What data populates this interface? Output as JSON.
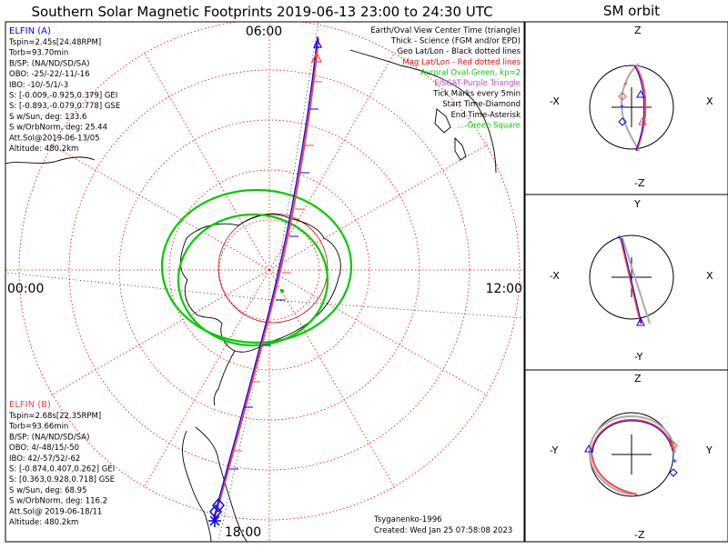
{
  "main": {
    "title": "Southern Solar Magnetic Footprints 2019-06-13 23:00 to 24:30 UTC",
    "labels": {
      "top": "06:00",
      "left": "00:00",
      "right": "12:00",
      "bottom": "18:00"
    }
  },
  "legend": [
    {
      "text": "Earth/Oval View Center Time (triangle)",
      "color": "#000000"
    },
    {
      "text": "Thick - Science (FGM and/or EPD)",
      "color": "#000000"
    },
    {
      "text": "Geo Lat/Lon - Black dotted lines",
      "color": "#000000"
    },
    {
      "text": "Mag Lat/Lon - Red dotted lines",
      "color": "#ff0000"
    },
    {
      "text": "Auroral Oval-Green, kp=2",
      "color": "#00cc00"
    },
    {
      "text": "EISCAT-Purple Triangle",
      "color": "#cc44cc"
    },
    {
      "text": "Tick Marks every 5min",
      "color": "#000000"
    },
    {
      "text": "Start Time-Diamond",
      "color": "#000000"
    },
    {
      "text": "End Time-Asterisk",
      "color": "#000000"
    },
    {
      "text": "...-Green Square",
      "color": "#00cc00"
    }
  ],
  "elfin_a": {
    "name": "ELFIN (A)",
    "color": "#0000ff",
    "lines": [
      "Tspin=2.45s[24.48RPM]",
      "Torb=93.70min",
      "B/SP: (NA/ND/SD/SA)",
      "OBO: -25/-22/-11/-16",
      "IBO: -10/-5/1/-3",
      "S: [-0.009,-0.925,0.379] GEI",
      "S: [-0.893,-0.079,0.778] GSE",
      "S w/Sun, deg: 133.6",
      "S w/OrbNorm, deg: 25.44",
      "Att.Sol@2019-06-13/05",
      "Altitude: 480.2km"
    ]
  },
  "elfin_b": {
    "name": "ELFIN (B)",
    "color": "#ff4444",
    "lines": [
      "Tspin=2.68s[22.35RPM]",
      "Torb=93.66min",
      "B/SP: (NA/ND/SD/SA)",
      "OBO: 4/-48/15/-50",
      "IBO: 42/-57/52/-62",
      "S: [-0.874,0.407,0.262] GEI",
      "S: [0.363,0.928,0.718] GSE",
      "S w/Sun, deg: 68.95",
      "S w/OrbNorm, deg: 116.2",
      "Att.Sol@ 2019-06-18/11",
      "Altitude: 480.2km"
    ]
  },
  "footer": {
    "author": "Tsyganenko-1996",
    "created": "Created: Wed Jan 25 07:58:08 2023"
  },
  "orbit_panel": {
    "title": "SM orbit",
    "panels": [
      {
        "top": "Z",
        "bottom": "-Z",
        "left": "-X",
        "right": "X"
      },
      {
        "top": "Y",
        "bottom": "-Y",
        "left": "-X",
        "right": "X"
      },
      {
        "top": "Z",
        "bottom": "-Z",
        "left": "-Y",
        "right": "Y"
      }
    ]
  },
  "colors": {
    "elfin_a": "#0000ff",
    "elfin_b": "#ff4444",
    "mag_grid": "#ff0000",
    "geo_grid": "#000000",
    "aurora": "#00cc00"
  }
}
